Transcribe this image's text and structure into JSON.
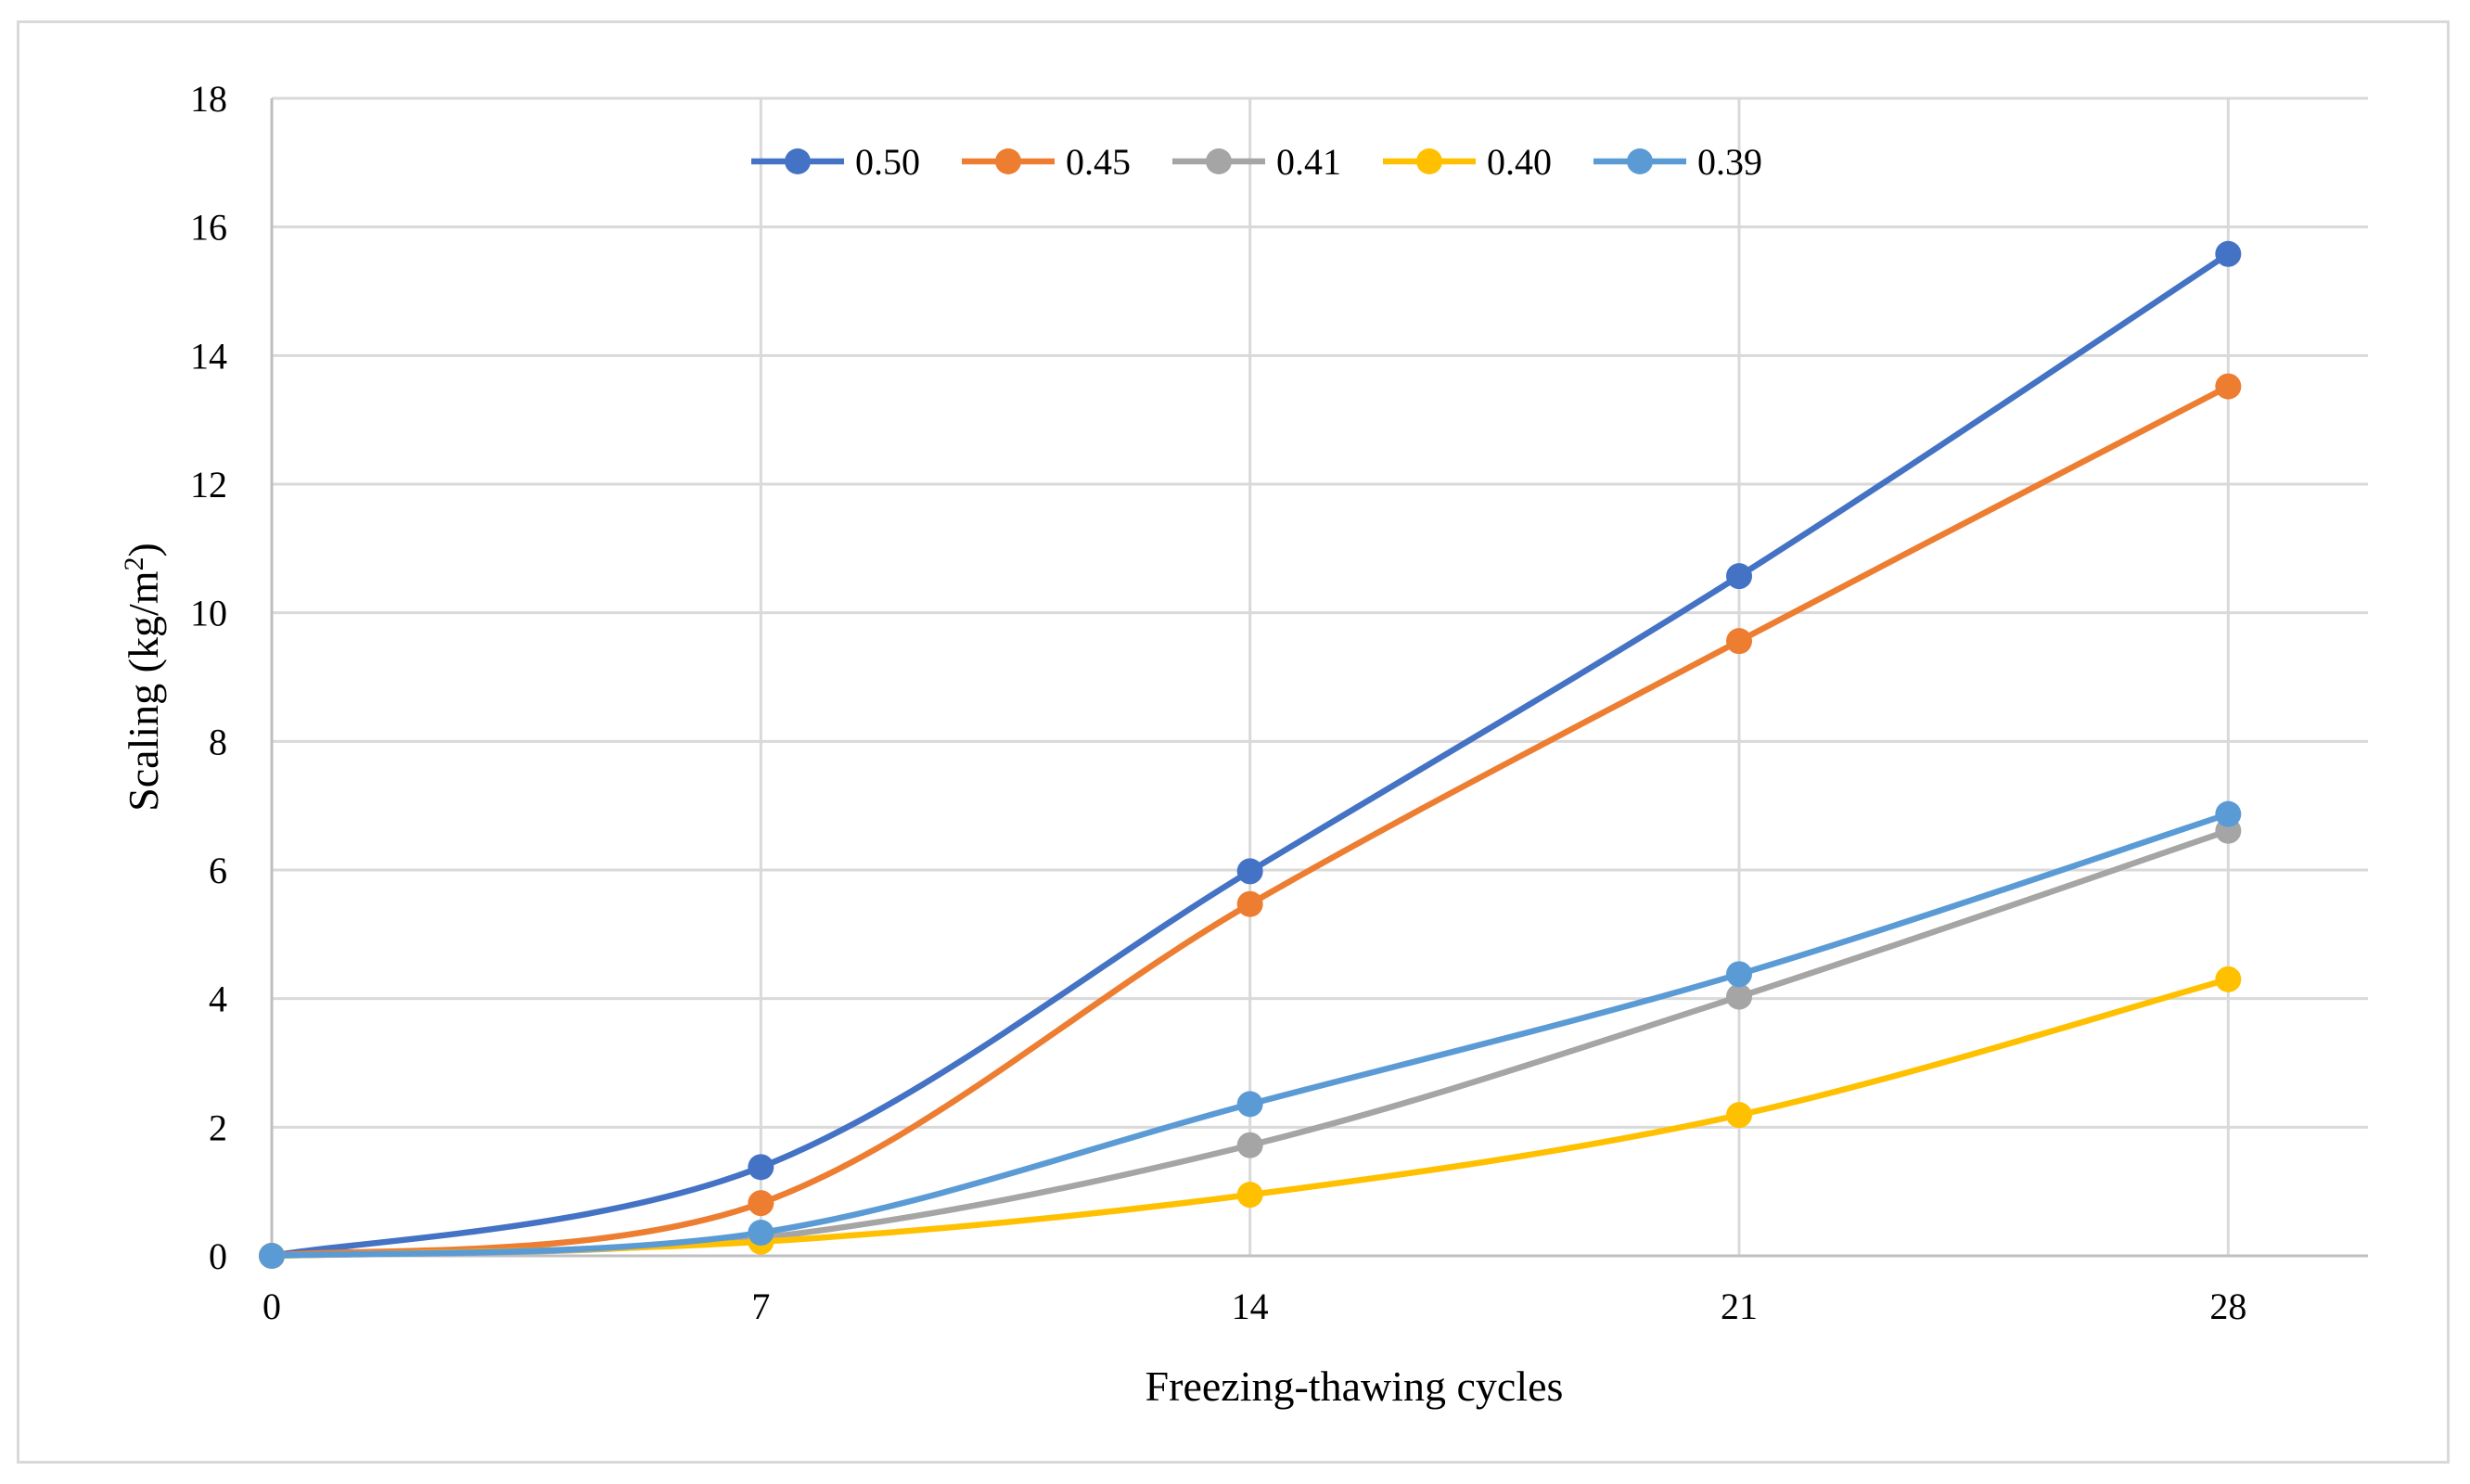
{
  "chart_data": {
    "type": "line",
    "title": "",
    "xlabel": "Freezing-thawing cycles",
    "ylabel_main": "Scaling (kg/m",
    "ylabel_sup": "2",
    "ylabel_close": ")",
    "x": [
      0,
      7,
      14,
      21,
      28
    ],
    "x_tick_labels": [
      "0",
      "7",
      "14",
      "21",
      "28"
    ],
    "xlim": [
      0,
      30
    ],
    "ylim": [
      0,
      18
    ],
    "y_ticks": [
      0,
      2,
      4,
      6,
      8,
      10,
      12,
      14,
      16,
      18
    ],
    "y_tick_labels": [
      "0",
      "2",
      "4",
      "6",
      "8",
      "10",
      "12",
      "14",
      "16",
      "18"
    ],
    "grid": true,
    "smooth": true,
    "legend_position": "top-center",
    "series": [
      {
        "name": "0.50",
        "color": "#4472c4",
        "values": [
          0,
          1.38,
          5.98,
          10.57,
          15.58
        ]
      },
      {
        "name": "0.45",
        "color": "#ed7d31",
        "values": [
          0,
          0.82,
          5.47,
          9.56,
          13.52
        ]
      },
      {
        "name": "0.41",
        "color": "#a5a5a5",
        "values": [
          0,
          0.28,
          1.72,
          4.03,
          6.61
        ]
      },
      {
        "name": "0.40",
        "color": "#ffc000",
        "values": [
          0,
          0.22,
          0.95,
          2.19,
          4.3
        ]
      },
      {
        "name": "0.39",
        "color": "#5b9bd5",
        "values": [
          0,
          0.36,
          2.36,
          4.38,
          6.87
        ]
      }
    ]
  }
}
